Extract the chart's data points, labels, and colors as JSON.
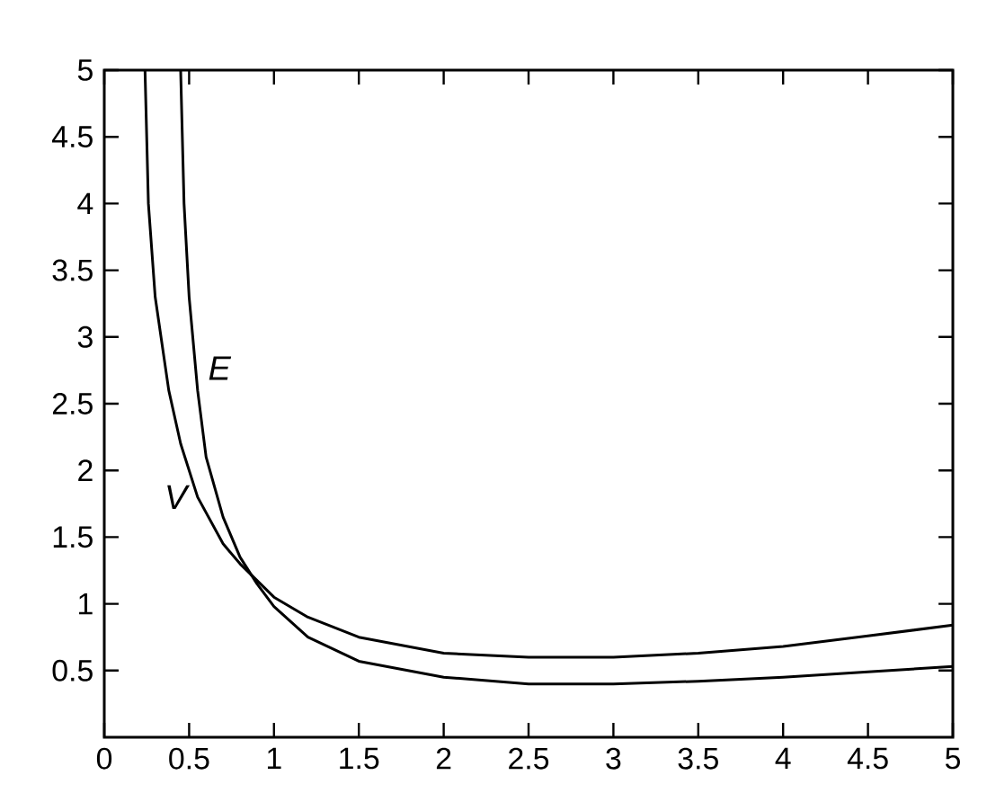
{
  "chart_data": {
    "type": "line",
    "xlim": [
      0,
      5
    ],
    "ylim": [
      0,
      5
    ],
    "xticks": [
      0,
      0.5,
      1,
      1.5,
      2,
      2.5,
      3,
      3.5,
      4,
      4.5,
      5
    ],
    "yticks": [
      0.5,
      1,
      1.5,
      2,
      2.5,
      3,
      3.5,
      4,
      4.5,
      5
    ],
    "grid": false,
    "legend": false,
    "marker": "none",
    "line_style": "solid",
    "series": [
      {
        "name": "E",
        "color": "#000000",
        "x": [
          0.45,
          0.47,
          0.5,
          0.55,
          0.6,
          0.7,
          0.8,
          0.9,
          1,
          1.2,
          1.5,
          2,
          2.5,
          3,
          3.5,
          4,
          4.5,
          5
        ],
        "values": [
          5,
          4,
          3.3,
          2.6,
          2.1,
          1.65,
          1.35,
          1.15,
          0.98,
          0.75,
          0.57,
          0.45,
          0.4,
          0.4,
          0.42,
          0.45,
          0.49,
          0.53
        ]
      },
      {
        "name": "V",
        "color": "#000000",
        "x": [
          0.24,
          0.26,
          0.3,
          0.38,
          0.45,
          0.55,
          0.7,
          0.8,
          1,
          1.2,
          1.5,
          2,
          2.5,
          3,
          3.5,
          4,
          4.5,
          5
        ],
        "values": [
          5,
          4,
          3.3,
          2.6,
          2.2,
          1.8,
          1.45,
          1.3,
          1.05,
          0.9,
          0.75,
          0.63,
          0.6,
          0.6,
          0.63,
          0.68,
          0.76,
          0.84
        ]
      }
    ]
  }
}
